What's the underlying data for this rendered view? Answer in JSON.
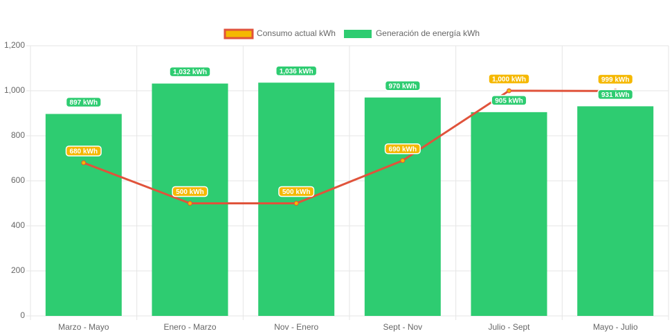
{
  "chart_data": {
    "type": "bar",
    "categories": [
      "Marzo - Mayo",
      "Enero - Marzo",
      "Nov - Enero",
      "Sept - Nov",
      "Julio - Sept",
      "Mayo - Julio"
    ],
    "series": [
      {
        "name": "Consumo actual kWh",
        "type": "line",
        "color": "#e0533b",
        "fill_color": "#f5b800",
        "values": [
          680,
          500,
          500,
          690,
          1000,
          999
        ],
        "value_labels": [
          "680 kWh",
          "500 kWh",
          "500 kWh",
          "690 kWh",
          "1,000 kWh",
          "999 kWh"
        ]
      },
      {
        "name": "Generación de energía kWh",
        "type": "bar",
        "color": "#2ecc71",
        "values": [
          897,
          1032,
          1036,
          970,
          905,
          931
        ],
        "value_labels": [
          "897 kWh",
          "1,032 kWh",
          "1,036 kWh",
          "970 kWh",
          "905 kWh",
          "931 kWh"
        ]
      }
    ],
    "ylim": [
      0,
      1200
    ],
    "yticks": [
      0,
      200,
      400,
      600,
      800,
      {
        "value": 1000,
        "label": "1,000"
      },
      {
        "value": 1200,
        "label": "1,200"
      }
    ],
    "grid": true,
    "legend": "top"
  }
}
